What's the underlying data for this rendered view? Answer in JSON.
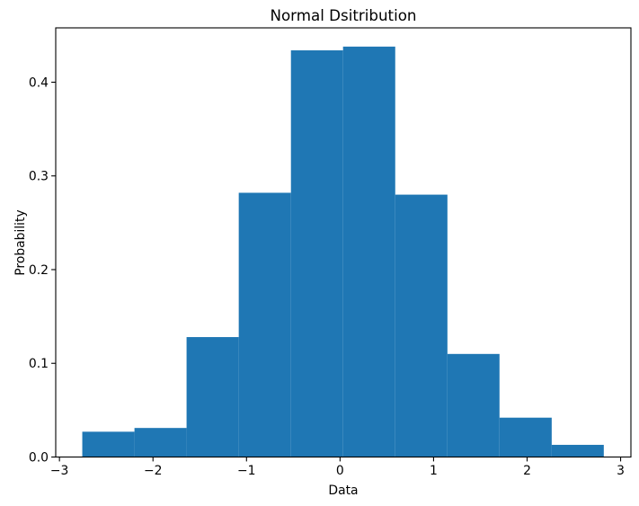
{
  "figure": {
    "background": "#ffffff",
    "frame_color": "#000000",
    "text_color": "#000000"
  },
  "chart_data": {
    "type": "bar",
    "subtype": "histogram",
    "title": "Normal Dsitribution",
    "xlabel": "Data",
    "ylabel": "Probability",
    "bar_color": "#1f77b4",
    "bin_edges": [
      -2.756,
      -2.198,
      -1.641,
      -1.083,
      -0.525,
      0.032,
      0.59,
      1.148,
      1.705,
      2.263,
      2.82
    ],
    "values": [
      0.027,
      0.031,
      0.128,
      0.282,
      0.434,
      0.438,
      0.28,
      0.11,
      0.042,
      0.013
    ],
    "xlim": [
      -3.04,
      3.11
    ],
    "ylim": [
      0,
      0.458
    ],
    "xticks": {
      "values": [
        -3,
        -2,
        -1,
        0,
        1,
        2,
        3
      ],
      "labels": [
        "−3",
        "−2",
        "−1",
        "0",
        "1",
        "2",
        "3"
      ]
    },
    "yticks": {
      "values": [
        0,
        0.1,
        0.2,
        0.3,
        0.4
      ],
      "labels": [
        "0.0",
        "0.1",
        "0.2",
        "0.3",
        "0.4"
      ]
    },
    "grid": false,
    "legend": null
  }
}
